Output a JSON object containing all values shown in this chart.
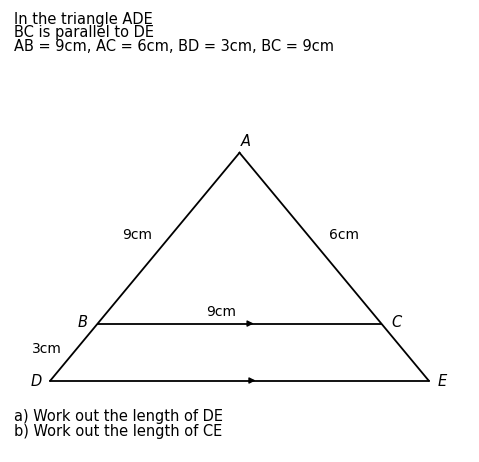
{
  "title_lines": [
    "In the triangle ADE",
    "BC is parallel to DE",
    "AB = 9cm, AC = 6cm, BD = 3cm, BC = 9cm"
  ],
  "points": {
    "A": [
      0.5,
      0.93
    ],
    "D": [
      0.08,
      0.08
    ],
    "E": [
      0.92,
      0.08
    ]
  },
  "ratio_B": 0.75,
  "label_A": "A",
  "label_B": "B",
  "label_C": "C",
  "label_D": "D",
  "label_E": "E",
  "label_AB": "9cm",
  "label_AC": "6cm",
  "label_BC": "9cm",
  "label_BD": "3cm",
  "footer_lines": [
    "a) Work out the length of DE",
    "b) Work out the length of CE"
  ],
  "bg_color": "#ffffff",
  "line_color": "#000000",
  "text_color": "#000000",
  "font_size_title": 10.5,
  "font_size_labels": 10.5,
  "font_size_dim": 10,
  "font_size_footer": 10.5
}
